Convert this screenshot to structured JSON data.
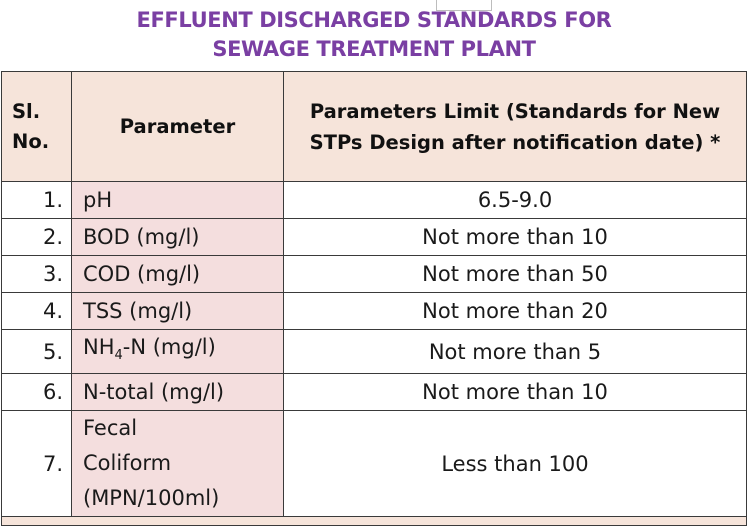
{
  "title_line1": "EFFLUENT DISCHARGED STANDARDS FOR",
  "title_line2": "SEWAGE TREATMENT PLANT",
  "header": {
    "sl_line1": "Sl.",
    "sl_line2": "No.",
    "parameter": "Parameter",
    "limit_line1": "Parameters Limit (Standards for New",
    "limit_line2": "STPs Design after notification date) *"
  },
  "rows": [
    {
      "sl": "1.",
      "parameter": "pH",
      "limit": "6.5-9.0"
    },
    {
      "sl": "2.",
      "parameter": "BOD (mg/l)",
      "limit": "Not more than 10"
    },
    {
      "sl": "3.",
      "parameter": "COD (mg/l)",
      "limit": "Not more than 50"
    },
    {
      "sl": "4.",
      "parameter": "TSS (mg/l)",
      "limit": "Not more than 20"
    },
    {
      "sl": "5.",
      "parameter": "NH",
      "parameter_sub": "4",
      "parameter_tail": "-N (mg/l)",
      "limit": "Not more than 5"
    },
    {
      "sl": "6.",
      "parameter": "N-total (mg/l)",
      "limit": "Not more than 10"
    },
    {
      "sl": "7.",
      "parameter_l1": "Fecal",
      "parameter_l2": "Coliform",
      "parameter_l3": "(MPN/100ml)",
      "limit": "Less than 100"
    }
  ],
  "colors": {
    "title": "#7a3fa3",
    "header_bg": "#f6e4da",
    "param_bg": "#f4dede",
    "border": "#3a3a3a"
  }
}
